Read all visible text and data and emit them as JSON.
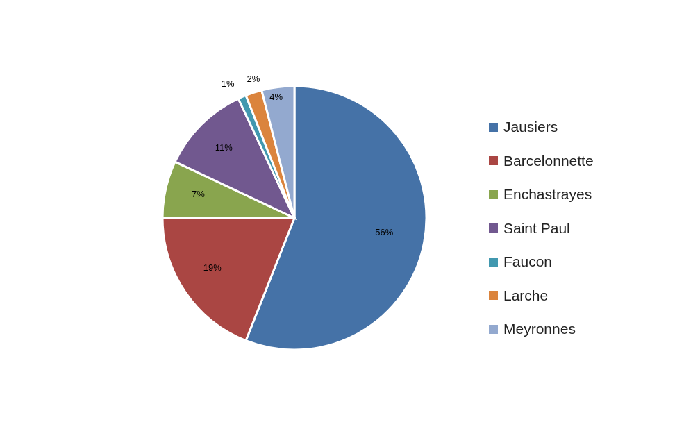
{
  "chart_data": {
    "type": "pie",
    "categories": [
      "Jausiers",
      "Barcelonnette",
      "Enchastrayes",
      "Saint Paul",
      "Faucon",
      "Larche",
      "Meyronnes"
    ],
    "values": [
      56,
      19,
      7,
      11,
      1,
      2,
      4
    ],
    "colors": [
      "#4572a7",
      "#aa4643",
      "#89a54e",
      "#71588f",
      "#4198af",
      "#db843d",
      "#93a9cf"
    ],
    "value_labels": [
      "56%",
      "19%",
      "7%",
      "11%",
      "1%",
      "2%",
      "4%"
    ],
    "legend": "right"
  }
}
